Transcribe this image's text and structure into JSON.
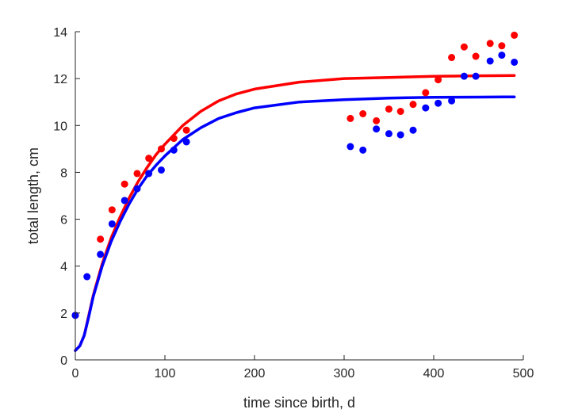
{
  "chart_data": {
    "type": "scatter",
    "title": "",
    "xlabel": "time since birth, d",
    "ylabel": "total length, cm",
    "xlim": [
      0,
      500
    ],
    "ylim": [
      0,
      14
    ],
    "xticks": [
      0,
      100,
      200,
      300,
      400,
      500
    ],
    "yticks": [
      0,
      2,
      4,
      6,
      8,
      10,
      12,
      14
    ],
    "grid": false,
    "legend": "none",
    "series": [
      {
        "kind": "points",
        "color": "#ff0000",
        "x": [
          0,
          28,
          41,
          55,
          69,
          82,
          96,
          110,
          124,
          307,
          321,
          336,
          350,
          363,
          377,
          391,
          405,
          420,
          434,
          447,
          463,
          476,
          490
        ],
        "y": [
          1.9,
          5.15,
          6.4,
          7.5,
          7.95,
          8.6,
          9.0,
          9.45,
          9.8,
          10.3,
          10.5,
          10.2,
          10.7,
          10.6,
          10.9,
          11.4,
          11.95,
          12.9,
          13.35,
          12.95,
          13.5,
          13.4,
          13.85
        ]
      },
      {
        "kind": "points",
        "color": "#0000ff",
        "x": [
          0,
          13,
          28,
          41,
          55,
          69,
          82,
          96,
          110,
          124,
          307,
          321,
          336,
          350,
          363,
          377,
          391,
          405,
          420,
          434,
          447,
          463,
          476,
          490
        ],
        "y": [
          1.9,
          3.55,
          4.5,
          5.8,
          6.8,
          7.3,
          7.95,
          8.1,
          8.95,
          9.3,
          9.1,
          8.95,
          9.85,
          9.65,
          9.6,
          9.8,
          10.75,
          10.95,
          11.05,
          12.1,
          12.1,
          12.75,
          13.0,
          12.7
        ]
      },
      {
        "kind": "line",
        "color": "#ff0000",
        "x": [
          0,
          5,
          10,
          15,
          20,
          30,
          40,
          50,
          60,
          70,
          80,
          90,
          100,
          120,
          140,
          160,
          180,
          200,
          250,
          300,
          350,
          400,
          450,
          490
        ],
        "y": [
          0.4,
          0.6,
          1.05,
          1.9,
          2.75,
          4.1,
          5.2,
          6.1,
          6.9,
          7.6,
          8.2,
          8.75,
          9.2,
          10.0,
          10.6,
          11.05,
          11.35,
          11.55,
          11.85,
          12.0,
          12.05,
          12.1,
          12.12,
          12.13
        ]
      },
      {
        "kind": "line",
        "color": "#0000ff",
        "x": [
          0,
          5,
          10,
          15,
          20,
          30,
          40,
          50,
          60,
          70,
          80,
          90,
          100,
          120,
          140,
          160,
          180,
          200,
          250,
          300,
          350,
          400,
          450,
          490
        ],
        "y": [
          0.4,
          0.6,
          1.05,
          1.85,
          2.7,
          4.0,
          5.05,
          5.9,
          6.65,
          7.3,
          7.85,
          8.3,
          8.7,
          9.4,
          9.9,
          10.3,
          10.55,
          10.75,
          11.0,
          11.1,
          11.17,
          11.2,
          11.21,
          11.22
        ]
      }
    ]
  }
}
